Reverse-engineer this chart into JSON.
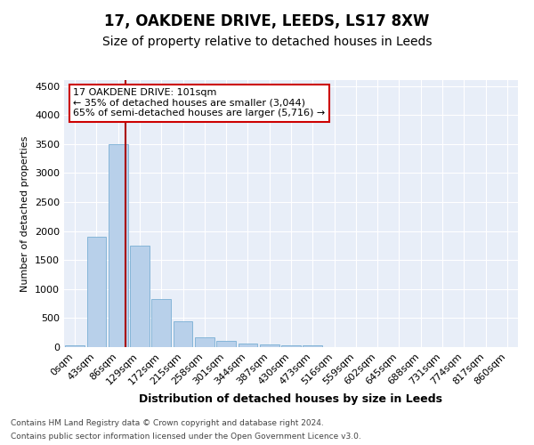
{
  "title1": "17, OAKDENE DRIVE, LEEDS, LS17 8XW",
  "title2": "Size of property relative to detached houses in Leeds",
  "xlabel": "Distribution of detached houses by size in Leeds",
  "ylabel": "Number of detached properties",
  "annotation_line1": "17 OAKDENE DRIVE: 101sqm",
  "annotation_line2": "← 35% of detached houses are smaller (3,044)",
  "annotation_line3": "65% of semi-detached houses are larger (5,716) →",
  "bar_labels": [
    "0sqm",
    "43sqm",
    "86sqm",
    "129sqm",
    "172sqm",
    "215sqm",
    "258sqm",
    "301sqm",
    "344sqm",
    "387sqm",
    "430sqm",
    "473sqm",
    "516sqm",
    "559sqm",
    "602sqm",
    "645sqm",
    "688sqm",
    "731sqm",
    "774sqm",
    "817sqm",
    "860sqm"
  ],
  "bar_values": [
    30,
    1900,
    3500,
    1750,
    830,
    440,
    170,
    100,
    55,
    40,
    30,
    30,
    5,
    3,
    2,
    2,
    1,
    1,
    1,
    1,
    0
  ],
  "bar_color": "#b8d0ea",
  "bar_edge_color": "#7aafd4",
  "vline_x_index": 2.35,
  "vline_color": "#aa0000",
  "ylim": [
    0,
    4600
  ],
  "yticks": [
    0,
    500,
    1000,
    1500,
    2000,
    2500,
    3000,
    3500,
    4000,
    4500
  ],
  "background_color": "#e8eef8",
  "grid_color": "#ffffff",
  "annotation_box_color": "#ffffff",
  "annotation_box_edge": "#cc0000",
  "footer1": "Contains HM Land Registry data © Crown copyright and database right 2024.",
  "footer2": "Contains public sector information licensed under the Open Government Licence v3.0.",
  "title1_fontsize": 12,
  "title2_fontsize": 10,
  "ylabel_fontsize": 8,
  "xlabel_fontsize": 9,
  "tick_fontsize": 8,
  "annot_fontsize": 8,
  "footer_fontsize": 6.5
}
